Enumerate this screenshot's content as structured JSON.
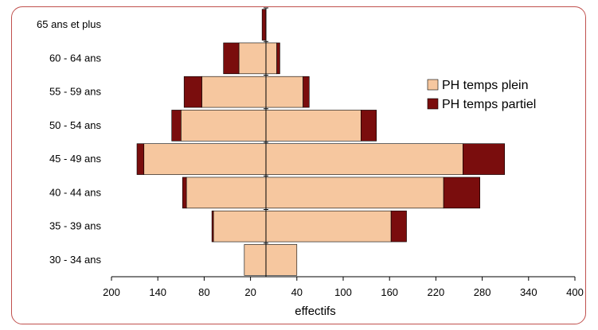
{
  "chart_data": {
    "type": "bar",
    "subtype": "population-pyramid",
    "orientation": "horizontal",
    "xlabel": "effectifs",
    "categories": [
      "30 - 34 ans",
      "35 - 39 ans",
      "40 - 44 ans",
      "45 - 49 ans",
      "50 - 54 ans",
      "55 - 59 ans",
      "60 - 64 ans",
      "65 ans et plus"
    ],
    "x_tick_labels": [
      "200",
      "140",
      "80",
      "20",
      "40",
      "100",
      "160",
      "220",
      "280",
      "340",
      "400"
    ],
    "xlim": [
      -200,
      400
    ],
    "left_side": {
      "series": [
        {
          "name": "PH temps plein",
          "color": "#f6c79f",
          "values": [
            28,
            68,
            103,
            158,
            110,
            83,
            35,
            0
          ]
        },
        {
          "name": "PH temps partiel",
          "color": "#7a0d0d",
          "values": [
            0,
            2,
            5,
            9,
            12,
            23,
            20,
            5
          ]
        }
      ]
    },
    "right_side": {
      "series": [
        {
          "name": "PH temps plein",
          "color": "#f6c79f",
          "values": [
            40,
            162,
            230,
            255,
            123,
            48,
            14,
            0
          ]
        },
        {
          "name": "PH temps partiel",
          "color": "#7a0d0d",
          "values": [
            0,
            20,
            47,
            54,
            20,
            8,
            4,
            0
          ]
        }
      ]
    },
    "legend": {
      "position": "right",
      "entries": [
        {
          "label": "PH temps plein",
          "color": "#f6c79f"
        },
        {
          "label": "PH temps partiel",
          "color": "#7a0d0d"
        }
      ]
    },
    "grid": false
  }
}
